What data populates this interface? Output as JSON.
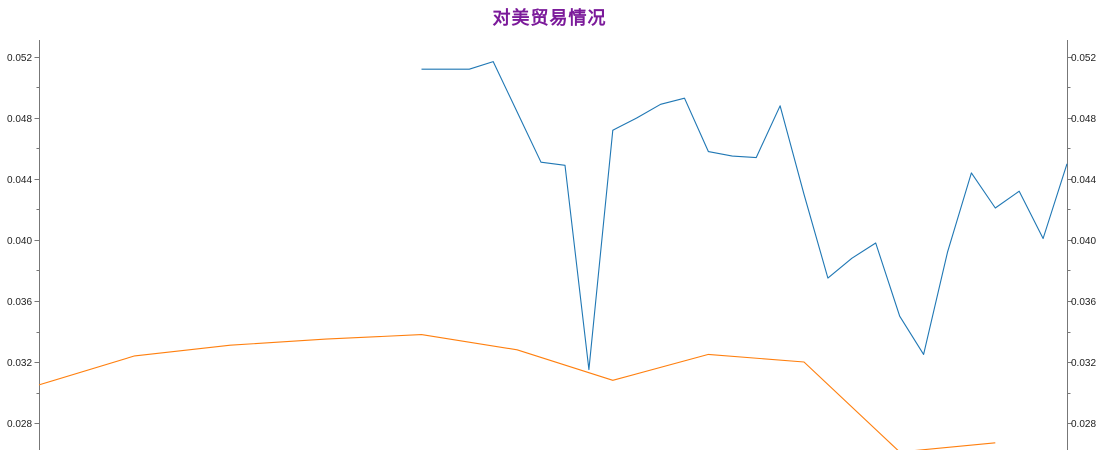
{
  "title": "对美贸易情况",
  "colors": {
    "title": "#7b1a9a",
    "series_a": "#1f77b4",
    "series_b": "#ff7f0e"
  },
  "chart_data": {
    "type": "line",
    "title": "对美贸易情况",
    "xlabel": "",
    "ylabel": "",
    "ylim": [
      0.0268,
      0.0532
    ],
    "y_ticks": [
      "0.028",
      "0.032",
      "0.036",
      "0.040",
      "0.044",
      "0.048",
      "0.052"
    ],
    "y_tick_values": [
      0.028,
      0.032,
      0.036,
      0.04,
      0.044,
      0.048,
      0.052
    ],
    "grid": false,
    "legend": "none",
    "secondary_axis": "right, same scale",
    "series": [
      {
        "color": "#1f77b4",
        "points": [
          [
            16,
            0.0512
          ],
          [
            17,
            0.0512
          ],
          [
            18,
            0.0512
          ],
          [
            19,
            0.0517
          ],
          [
            20,
            0.0484
          ],
          [
            21,
            0.0451
          ],
          [
            22,
            0.0449
          ],
          [
            23,
            0.0315
          ],
          [
            24,
            0.0472
          ],
          [
            25,
            0.048
          ],
          [
            26,
            0.0489
          ],
          [
            27,
            0.0493
          ],
          [
            28,
            0.0458
          ],
          [
            29,
            0.0455
          ],
          [
            30,
            0.0454
          ],
          [
            31,
            0.0488
          ],
          [
            32,
            0.043
          ],
          [
            33,
            0.0375
          ],
          [
            34,
            0.0388
          ],
          [
            35,
            0.0398
          ],
          [
            36,
            0.035
          ],
          [
            37,
            0.0325
          ],
          [
            38,
            0.0392
          ],
          [
            39,
            0.0444
          ],
          [
            40,
            0.0421
          ],
          [
            41,
            0.0432
          ],
          [
            42,
            0.0401
          ],
          [
            43,
            0.045
          ]
        ]
      },
      {
        "color": "#ff7f0e",
        "points": [
          [
            0,
            0.0305
          ],
          [
            4,
            0.0324
          ],
          [
            8,
            0.0331
          ],
          [
            12,
            0.0335
          ],
          [
            16,
            0.0338
          ],
          [
            20,
            0.0328
          ],
          [
            24,
            0.0308
          ],
          [
            28,
            0.0325
          ],
          [
            32,
            0.032
          ],
          [
            36,
            0.0261
          ],
          [
            40,
            0.0267
          ]
        ]
      }
    ],
    "x_range": [
      0,
      43
    ]
  }
}
